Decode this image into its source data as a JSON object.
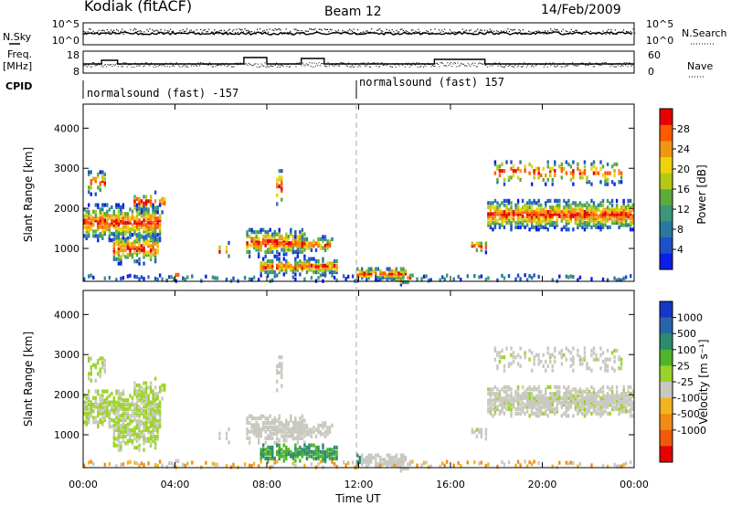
{
  "header": {
    "title": "Kodiak (fitACF)",
    "beam": "Beam 12",
    "date": "14/Feb/2009"
  },
  "left_labels": {
    "nsky": "N.Sky",
    "freq": "Freq.",
    "mhz": "[MHz]",
    "cpid": "CPID"
  },
  "right_labels": {
    "nsearch": "N.Search",
    "nave": "Nave"
  },
  "noise_panel": {
    "left_ticks": [
      "10^5",
      "10^0"
    ],
    "right_ticks": [
      "10^5",
      "10^0"
    ]
  },
  "freq_panel": {
    "left_ticks": [
      "18",
      "8"
    ],
    "right_ticks": [
      "60",
      "0"
    ]
  },
  "cpid": {
    "left": "normalsound (fast) -157",
    "right": "normalsound (fast) 157"
  },
  "colors": {
    "power": [
      "#0a1ee6",
      "#1e50c8",
      "#2878a0",
      "#3c9678",
      "#5aaa3c",
      "#b4c814",
      "#f0d20a",
      "#f09614",
      "#ff5a00",
      "#e60000"
    ],
    "velocity": [
      "#1437c8",
      "#2864aa",
      "#2d8c6e",
      "#50b428",
      "#9bd228",
      "#c8c8c0",
      "#f0b41e",
      "#f08c14",
      "#f05a0a",
      "#e60000"
    ]
  },
  "chart_data": [
    {
      "type": "heatmap",
      "name": "power",
      "ylabel": "Slant Range [km]",
      "yticks": [
        "1000",
        "2000",
        "3000",
        "4000"
      ],
      "ylim": [
        180,
        4600
      ],
      "colorbar_label": "Power [dB]",
      "colorbar_ticks": [
        "4",
        "8",
        "12",
        "16",
        "20",
        "24",
        "28"
      ],
      "colorbar_range": [
        0,
        32
      ]
    },
    {
      "type": "heatmap",
      "name": "velocity",
      "ylabel": "Slant Range [km]",
      "yticks": [
        "1000",
        "2000",
        "3000",
        "4000"
      ],
      "ylim": [
        180,
        4600
      ],
      "colorbar_label": "Velocity [m s⁻¹]",
      "colorbar_ticks": [
        "1000",
        "500",
        "100",
        "25",
        "-25",
        "-100",
        "-500",
        "-1000"
      ],
      "xlabel": "Time UT",
      "xticks": [
        "00:00",
        "04:00",
        "08:00",
        "12:00",
        "16:00",
        "20:00",
        "00:00"
      ],
      "xlim_hours": [
        0,
        24
      ]
    }
  ]
}
